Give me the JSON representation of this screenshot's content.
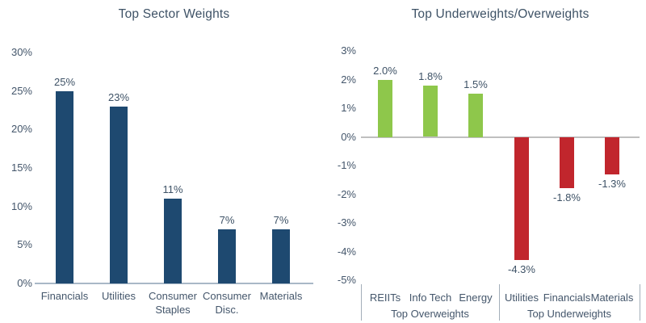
{
  "chart_data": [
    {
      "type": "bar",
      "title": "Top Sector Weights",
      "categories": [
        "Financials",
        "Utilities",
        "Consumer\nStaples",
        "Consumer\nDisc.",
        "Materials"
      ],
      "values": [
        25,
        23,
        11,
        7,
        7
      ],
      "value_labels": [
        "25%",
        "23%",
        "11%",
        "7%",
        "7%"
      ],
      "ytick_values": [
        0,
        5,
        10,
        15,
        20,
        25,
        30
      ],
      "ytick_labels": [
        "0%",
        "5%",
        "10%",
        "15%",
        "20%",
        "25%",
        "30%"
      ],
      "ylim": [
        0,
        30
      ],
      "xlabel": "",
      "ylabel": "",
      "grid": false,
      "legend": false,
      "bar_color": "#1e4970",
      "axis_line_color": "#a9b8c7",
      "text_color": "#415568"
    },
    {
      "type": "bar",
      "title": "Top Underweights/Overweights",
      "categories": [
        "REIITs",
        "Info Tech",
        "Energy",
        "Utilities",
        "Financials",
        "Materials"
      ],
      "values": [
        2.0,
        1.8,
        1.5,
        -4.3,
        -1.8,
        -1.3
      ],
      "value_labels": [
        "2.0%",
        "1.8%",
        "1.5%",
        "-4.3%",
        "-1.8%",
        "-1.3%"
      ],
      "ytick_values": [
        3,
        2,
        1,
        0,
        -1,
        -2,
        -3,
        -4,
        -5
      ],
      "ytick_labels": [
        "3%",
        "2%",
        "1%",
        "0%",
        "-1%",
        "-2%",
        "-3%",
        "-4%",
        "-5%"
      ],
      "ylim": [
        -5,
        3
      ],
      "xlabel": "",
      "ylabel": "",
      "grid": false,
      "legend": false,
      "groups": [
        {
          "label": "Top Overweights",
          "count": 3
        },
        {
          "label": "Top Underweights",
          "count": 3
        }
      ],
      "positive_color": "#8ec74b",
      "negative_color": "#c1262d",
      "axis_line_color": "#bfbfbf",
      "text_color": "#415568"
    }
  ]
}
